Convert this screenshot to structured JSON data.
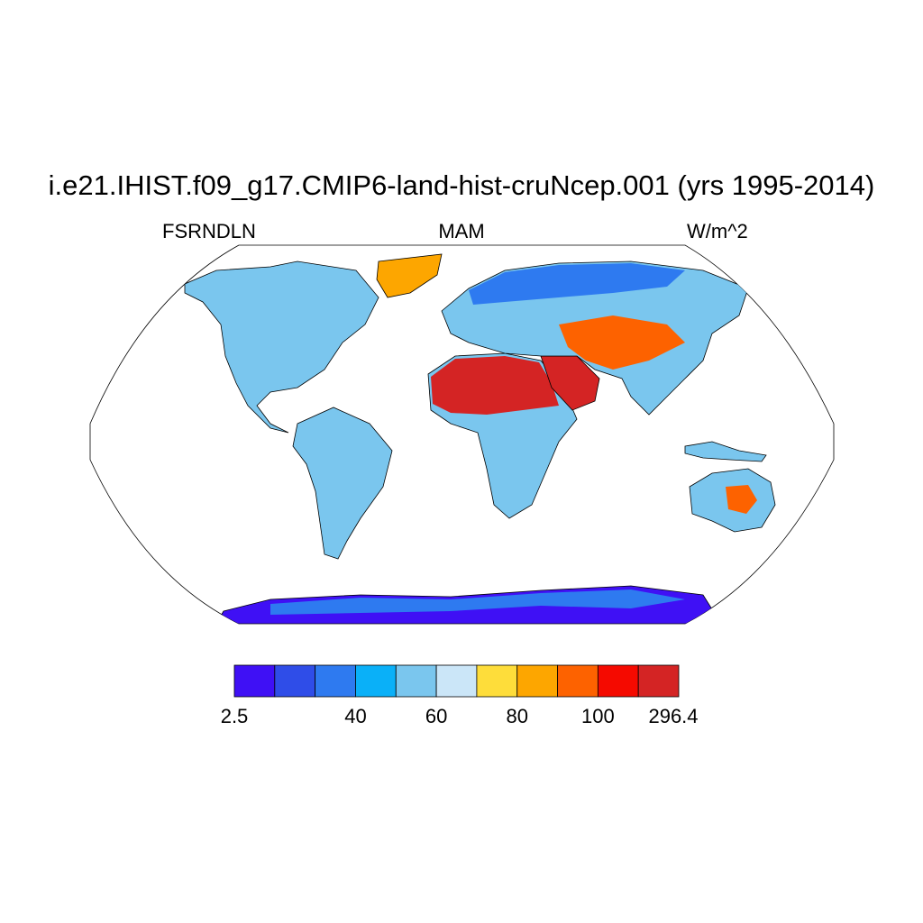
{
  "title": "i.e21.IHIST.f09_g17.CMIP6-land-hist-cruNcep.001 (yrs 1995-2014)",
  "variable": "FSRNDLN",
  "season": "MAM",
  "units": "W/m^2",
  "map": {
    "projection": "Robinson",
    "ocean_color": "#ffffff",
    "coastline_color": "#000000"
  },
  "colorbar": {
    "colors": [
      "#3f10f5",
      "#2f4de8",
      "#2e7af0",
      "#0ab0f8",
      "#7ac6ee",
      "#cbe6f8",
      "#fedd3a",
      "#fda600",
      "#fd6200",
      "#f50a00",
      "#d42424"
    ],
    "labels": [
      "2.5",
      "40",
      "60",
      "80",
      "100",
      "296.4"
    ]
  }
}
